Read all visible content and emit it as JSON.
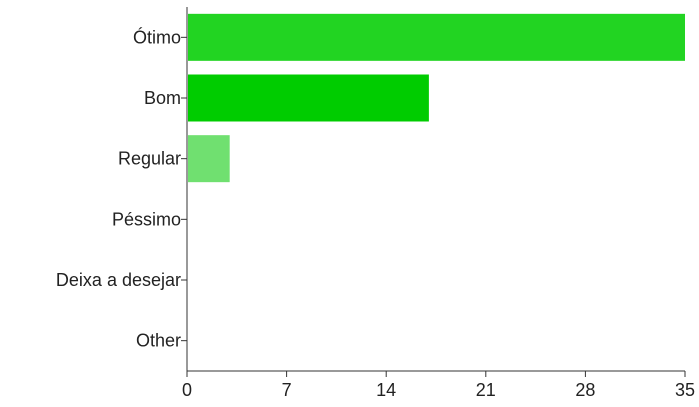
{
  "chart_data": {
    "type": "bar",
    "orientation": "horizontal",
    "title": "",
    "xlabel": "",
    "ylabel": "",
    "categories": [
      "Ótimo",
      "Bom",
      "Regular",
      "Péssimo",
      "Deixa a desejar",
      "Other"
    ],
    "values": [
      35,
      17,
      3,
      0,
      0,
      0
    ],
    "bar_colors": [
      "#22d422",
      "#00cc00",
      "#70e070",
      "#22d422",
      "#22d422",
      "#22d422"
    ],
    "xlim": [
      0,
      35
    ],
    "xticks": [
      0,
      7,
      14,
      21,
      28,
      35
    ],
    "grid": false,
    "legend": "none"
  }
}
